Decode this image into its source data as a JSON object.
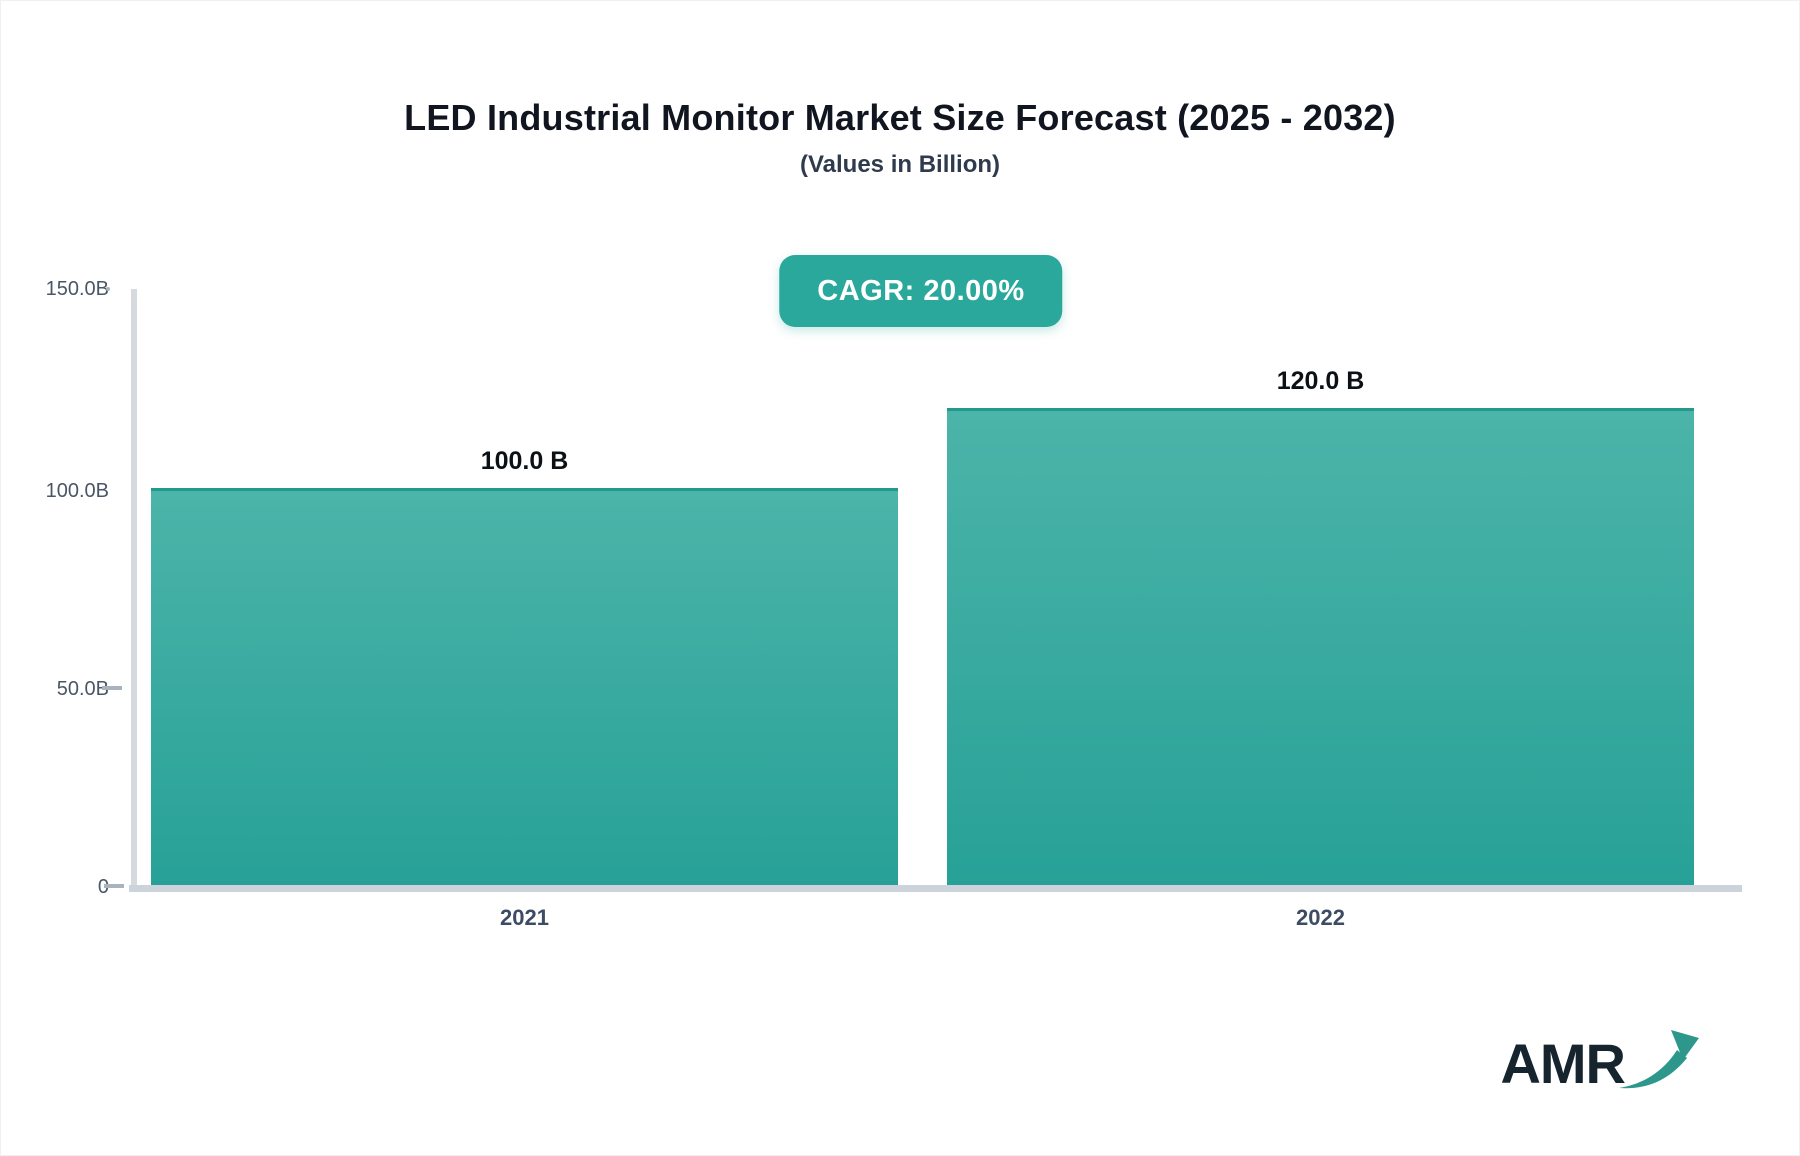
{
  "header": {
    "title": "LED Industrial Monitor Market Size Forecast (2025 - 2032)",
    "subtitle": "(Values in Billion)"
  },
  "badge": {
    "label": "CAGR: 20.00%",
    "color": "#2ba89c",
    "text_color": "#ffffff"
  },
  "chart_data": {
    "type": "bar",
    "title": "LED Industrial Monitor Market Size Forecast (2025 - 2032)",
    "subtitle": "(Values in Billion)",
    "unit": "Billion",
    "categories": [
      "2021",
      "2022"
    ],
    "values": [
      100.0,
      120.0
    ],
    "value_labels": [
      "100.0 B",
      "120.0 B"
    ],
    "cagr_percent": 20.0,
    "xlabel": "",
    "ylabel": "",
    "ylim": [
      0,
      150
    ],
    "ytick_labels": [
      "150.0B",
      "100.0B",
      "50.0B",
      "0"
    ],
    "grid": false,
    "legend": false,
    "bar_gradient_top": "#4cb4a9",
    "bar_gradient_bottom": "#27a197",
    "bar_border_color": "#23988d",
    "axis_color": "#d6dade",
    "tick_color": "#aab2bd"
  },
  "logo": {
    "text": "AMR",
    "text_color": "#16242e",
    "arrow_color": "#2e978c"
  }
}
